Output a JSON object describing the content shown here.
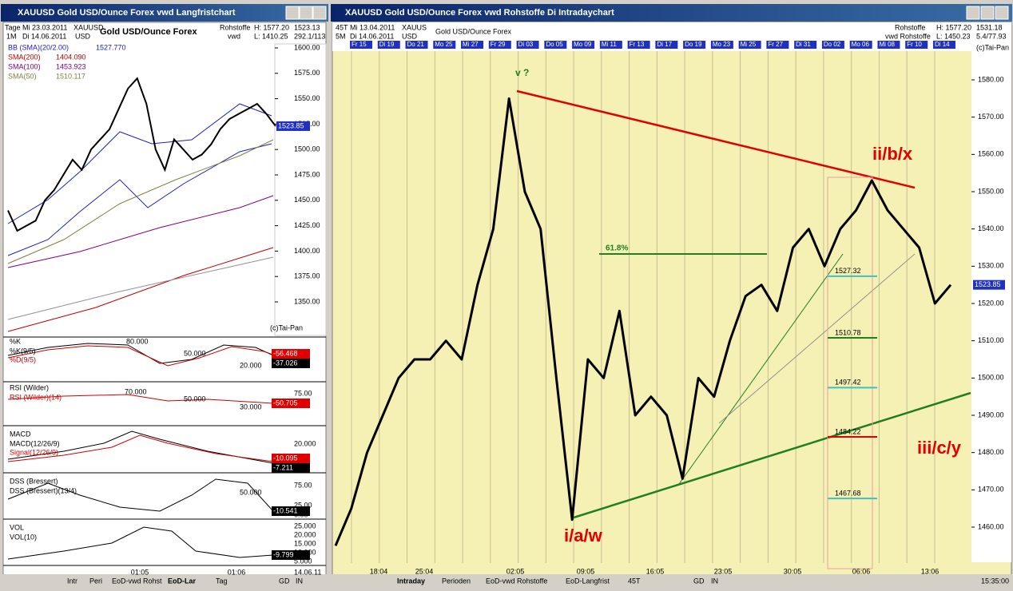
{
  "left": {
    "title": "XAUUSD Gold USD/Ounce  Forex vwd Langfristchart",
    "info": [
      "Tage",
      "Mi 23.03.2011",
      "XAUUSD",
      "Gold USD/Ounce  Forex",
      "Rohstoffe",
      "H: 1577.20",
      "1523.13",
      "1M",
      "Di 14.06.2011",
      "USD",
      "vwd",
      "L: 1410.25",
      "292.1/113"
    ],
    "legend": [
      "BB (SMA)(20/2.00)",
      "1527.770",
      "SMA(200)",
      "1404.090",
      "SMA(100)",
      "1453.923",
      "SMA(50)",
      "1510.117"
    ],
    "ylim": [
      1350,
      1600
    ],
    "yticks": [
      {
        "value": 1600,
        "label": "1600.00"
      },
      {
        "value": 1575,
        "label": "1575.00"
      },
      {
        "value": 1550,
        "label": "1550.00"
      },
      {
        "value": 1525,
        "label": "1525.00"
      },
      {
        "value": 1500,
        "label": "1500.00"
      },
      {
        "value": 1475,
        "label": "1475.00"
      },
      {
        "value": 1450,
        "label": "1450.00"
      },
      {
        "value": 1425,
        "label": "1425.00"
      },
      {
        "value": 1400,
        "label": "1400.00"
      },
      {
        "value": 1375,
        "label": "1375.00"
      },
      {
        "value": 1350,
        "label": "1350.00"
      }
    ],
    "prices": [
      1440,
      1420,
      1425,
      1430,
      1450,
      1460,
      1475,
      1490,
      1480,
      1500,
      1510,
      1520,
      1540,
      1560,
      1570,
      1545,
      1500,
      1480,
      1510,
      1500,
      1490,
      1495,
      1505,
      1520,
      1530,
      1535,
      1540,
      1545,
      1535,
      1523
    ],
    "last": "1523.85",
    "copyright": "(c)Tai-Pan",
    "panels": [
      "%K",
      "%K(9/5)",
      "%D(9/5)",
      "80.000",
      "50.000",
      "20.000",
      "-56.468",
      "-37.026",
      "RSI (Wilder)",
      "RSI (Wilder)(14)",
      "70.000",
      "50.000",
      "30.000",
      "75.00",
      "-50.705",
      "MACD",
      "MACD(12/26/9)",
      "Signal(12/26/9)",
      "20.000",
      "-10.095",
      "-7.211",
      "DSS (Bressert)",
      "DSS (Bressert)(13/4)",
      "75.00",
      "50.000",
      "25.00",
      "0.00",
      "-10.541",
      "VOL",
      "VOL(10)",
      "25.000",
      "20.000",
      "15.000",
      "10.000",
      "5.000",
      "-9.799"
    ],
    "xlabels": [
      "01:05",
      "01:06",
      "14.06.11"
    ],
    "tabs": [
      "Intr",
      "Peri",
      "EoD-vwd Rohst",
      "EoD-Lar",
      "Tag",
      "GD",
      "IN"
    ]
  },
  "right": {
    "title": "XAUUSD Gold USD/Ounce  Forex vwd Rohstoffe Di Intradaychart",
    "info": [
      "45T",
      "Mi 13.04.2011",
      "XAUUS",
      "Gold USD/Ounce  Forex",
      "Rohstoffe",
      "H: 1577.20",
      "1531.18",
      "5M",
      "Di 14.06.2011",
      "USD",
      "vwd Rohstoffe",
      "L: 1450.23",
      "5.4/77.93"
    ],
    "dates": [
      "Fr 15",
      "Di 19",
      "Do 21",
      "Mo 25",
      "Mi 27",
      "Fr 29",
      "Di 03",
      "Do 05",
      "Mo 09",
      "Mi 11",
      "Fr 13",
      "Di 17",
      "Do 19",
      "Mo 23",
      "Mi 25",
      "Fr 27",
      "Di 31",
      "Do 02",
      "Mo 06",
      "Mi 08",
      "Fr 10",
      "Di 14"
    ],
    "copyright": "(c)Tai-Pan",
    "ylim": [
      1460,
      1580
    ],
    "yticks": [
      {
        "value": 1580,
        "label": "1580.00"
      },
      {
        "value": 1570,
        "label": "1570.00"
      },
      {
        "value": 1560,
        "label": "1560.00"
      },
      {
        "value": 1550,
        "label": "1550.00"
      },
      {
        "value": 1540,
        "label": "1540.00"
      },
      {
        "value": 1530,
        "label": "1530.00"
      },
      {
        "value": 1520,
        "label": "1520.00"
      },
      {
        "value": 1510,
        "label": "1510.00"
      },
      {
        "value": 1500,
        "label": "1500.00"
      },
      {
        "value": 1490,
        "label": "1490.00"
      },
      {
        "value": 1480,
        "label": "1480.00"
      },
      {
        "value": 1470,
        "label": "1470.00"
      },
      {
        "value": 1460,
        "label": "1460.00"
      }
    ],
    "prices": [
      1455,
      1465,
      1480,
      1490,
      1500,
      1505,
      1505,
      1510,
      1505,
      1525,
      1540,
      1575,
      1550,
      1540,
      1500,
      1462,
      1505,
      1500,
      1518,
      1490,
      1495,
      1490,
      1473,
      1500,
      1495,
      1510,
      1522,
      1525,
      1518,
      1535,
      1540,
      1530,
      1540,
      1545,
      1553,
      1545,
      1540,
      1535,
      1520,
      1525
    ],
    "last": "1523.85",
    "fib": [
      1527.32,
      1510.78,
      1497.42,
      1484.22,
      1467.68
    ],
    "annotations": [
      "v ?",
      "ii/b/x",
      "iii/c/y",
      "i/a/w",
      "61.8%"
    ],
    "xlabels": [
      "18:04",
      "25:04",
      "02:05",
      "09:05",
      "16:05",
      "23:05",
      "30:05",
      "06:06",
      "13:06"
    ],
    "tabs": [
      "Intraday",
      "Perioden",
      "EoD-vwd Rohstoffe",
      "EoD-Langfrist",
      "45T",
      "GD",
      "IN",
      "15:35:00"
    ]
  }
}
